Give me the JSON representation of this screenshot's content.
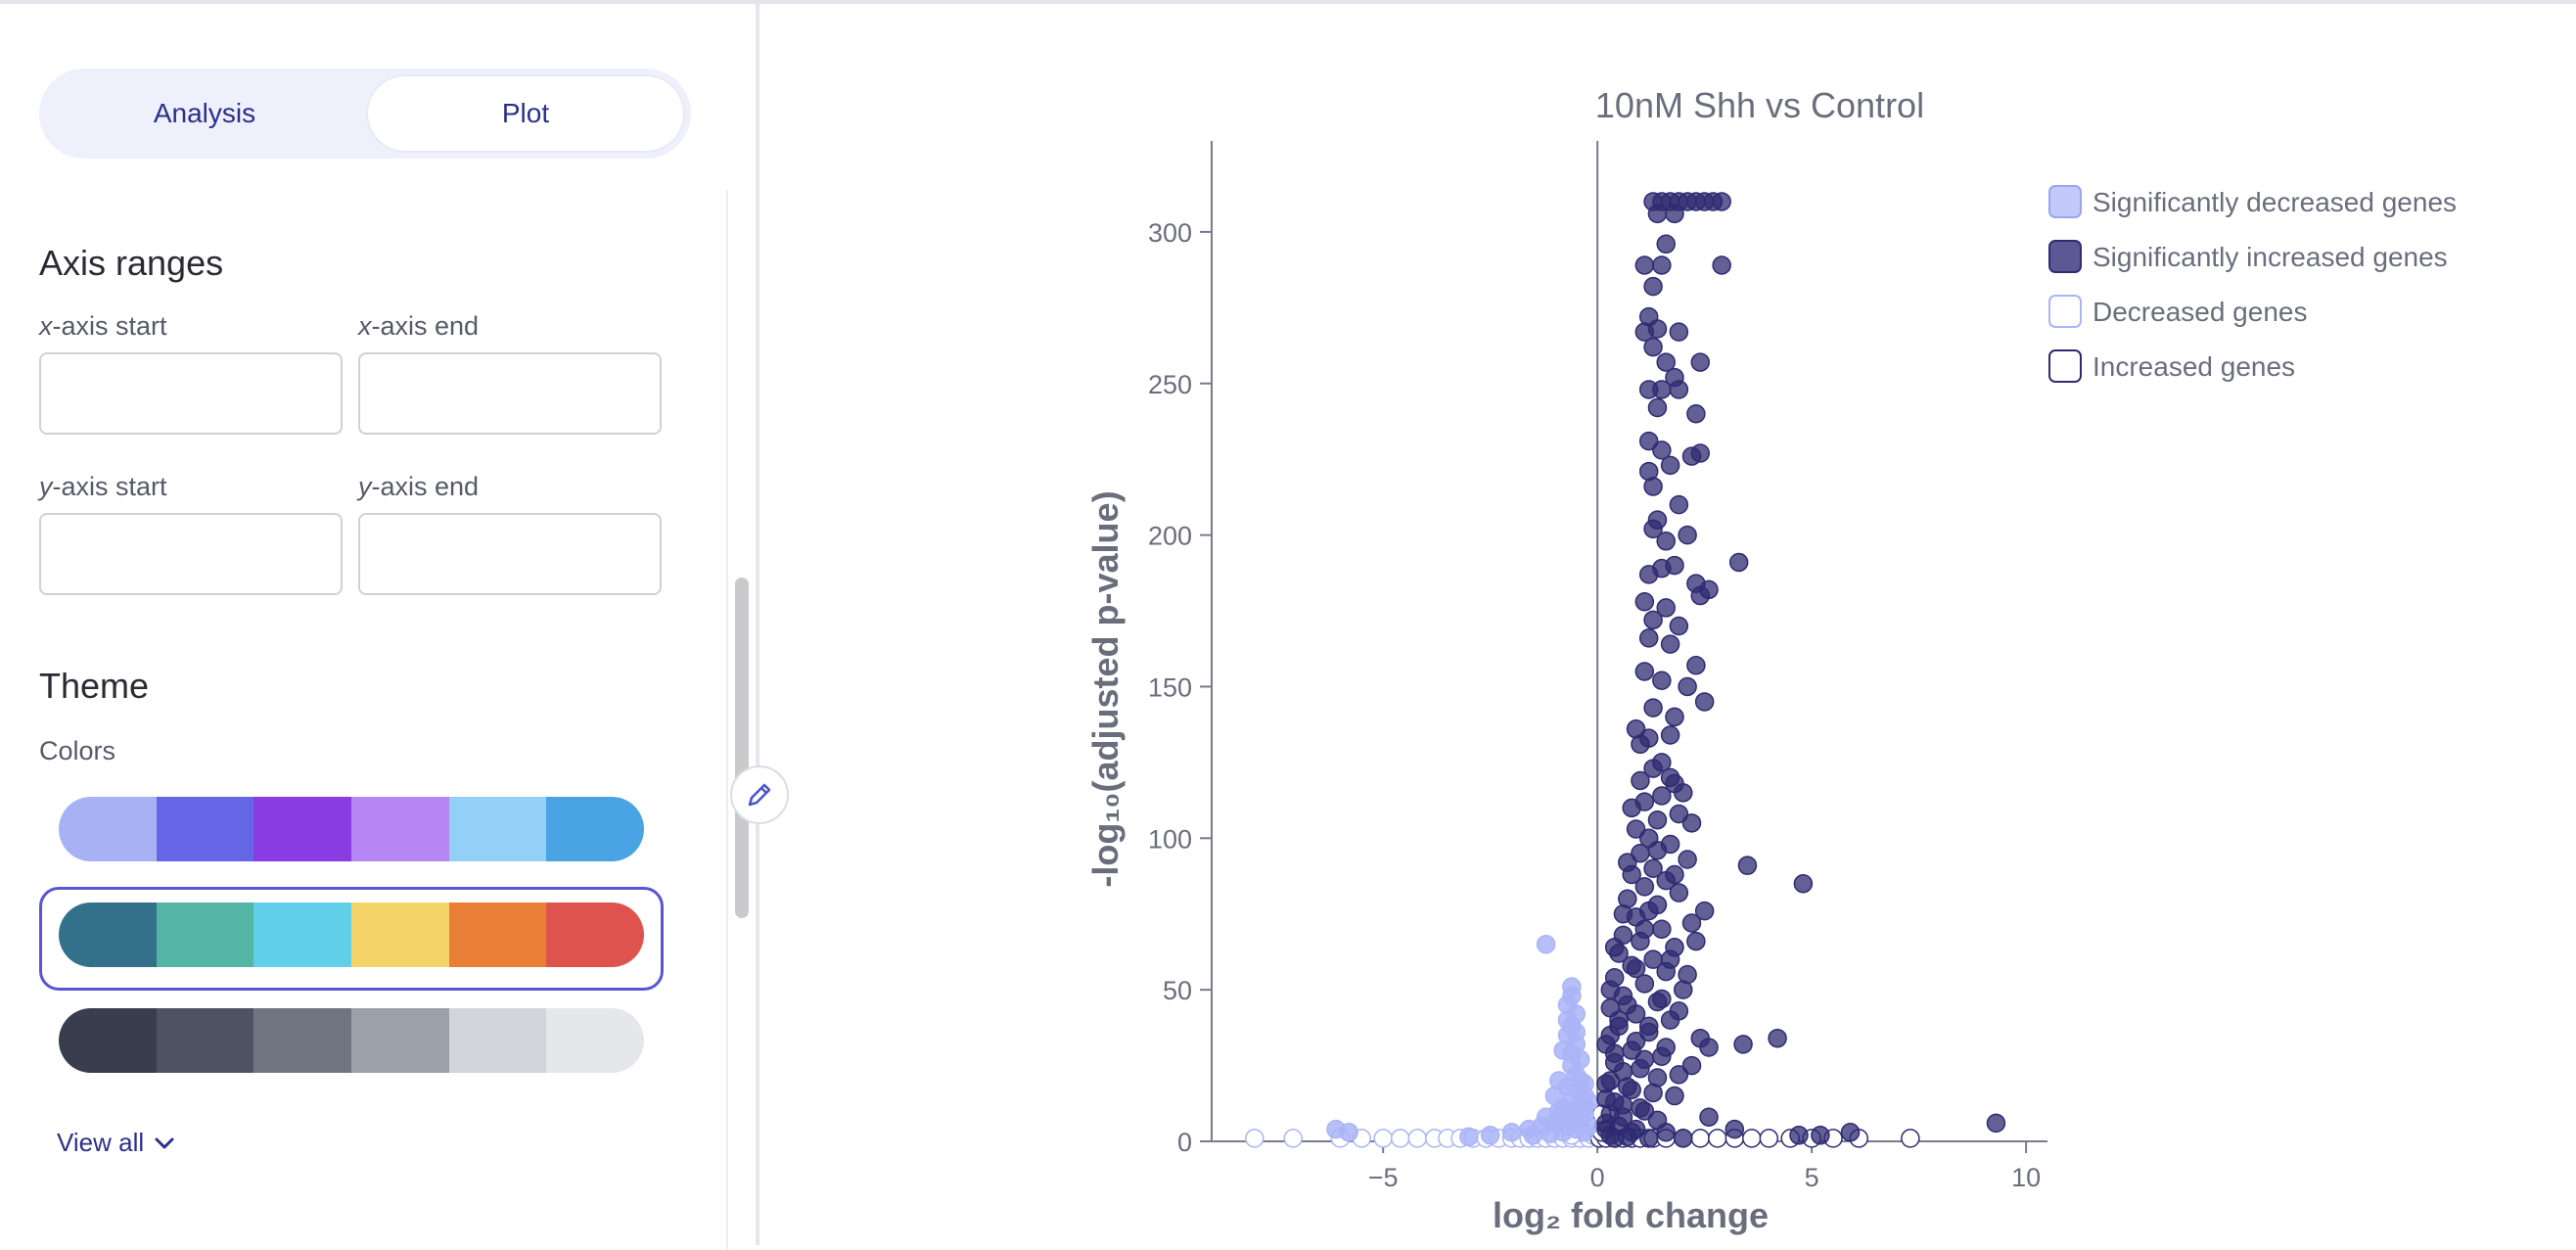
{
  "tabs": [
    {
      "label": "Analysis",
      "active": false
    },
    {
      "label": "Plot",
      "active": true
    }
  ],
  "axis_ranges": {
    "title": "Axis ranges",
    "x_start_label": "axis start",
    "x_end_label": "axis end",
    "y_start_label": "axis start",
    "y_end_label": "axis end",
    "x_prefix": "x",
    "y_prefix": "y",
    "x_start_value": "",
    "x_end_value": "",
    "y_start_value": "",
    "y_end_value": ""
  },
  "theme": {
    "title": "Theme",
    "colors_label": "Colors",
    "palettes": [
      [
        "#a7b2f5",
        "#6566e6",
        "#8a3ce3",
        "#b686f5",
        "#93d0f7",
        "#4aa3e2"
      ],
      [
        "#33718b",
        "#54b5a5",
        "#60cfe7",
        "#f4d466",
        "#e97f36",
        "#df534e"
      ],
      [
        "#383e4d",
        "#4d5362",
        "#6f7480",
        "#9ba0ab",
        "#d2d4d9",
        "#e6e7ea"
      ]
    ],
    "selected_palette": 1,
    "view_all_label": "View all"
  },
  "colors": {
    "sig_increased": "#2f2b72",
    "sig_decreased": "#aab4f7",
    "nonsig_increased_stroke": "#2f2b72",
    "nonsig_decreased_stroke": "#aab4f7",
    "axis": "#777b8a",
    "text": "#6a6e7c"
  },
  "chart_data": {
    "type": "scatter",
    "title": "10nM Shh vs Control",
    "xlabel": "log₂ fold change",
    "ylabel": "-log₁₀(adjusted p-value)",
    "xlim": [
      -9,
      10.5
    ],
    "ylim": [
      0,
      330
    ],
    "xticks": [
      -5,
      0,
      5,
      10
    ],
    "yticks": [
      0,
      50,
      100,
      150,
      200,
      250,
      300
    ],
    "xtick_labels": [
      "−5",
      "0",
      "5",
      "10"
    ],
    "ytick_labels": [
      "0",
      "50",
      "100",
      "150",
      "200",
      "250",
      "300"
    ],
    "legend_position": "top-right",
    "series": [
      {
        "name": "Significantly decreased genes",
        "points": [
          [
            -1.2,
            65
          ],
          [
            -0.6,
            51
          ],
          [
            -0.6,
            48
          ],
          [
            -0.7,
            45
          ],
          [
            -0.5,
            42
          ],
          [
            -0.6,
            38
          ],
          [
            -0.7,
            35
          ],
          [
            -0.5,
            32
          ],
          [
            -0.6,
            29
          ],
          [
            -0.4,
            27
          ],
          [
            -0.6,
            25
          ],
          [
            -0.5,
            22
          ],
          [
            -0.4,
            20
          ],
          [
            -0.7,
            18
          ],
          [
            -0.5,
            17
          ],
          [
            -0.3,
            15
          ],
          [
            -0.6,
            14
          ],
          [
            -0.4,
            12
          ],
          [
            -0.8,
            11
          ],
          [
            -0.5,
            10
          ],
          [
            -0.3,
            9
          ],
          [
            -0.9,
            8
          ],
          [
            -0.6,
            7
          ],
          [
            -0.4,
            6
          ],
          [
            -1.0,
            6
          ],
          [
            -0.7,
            5
          ],
          [
            -1.3,
            5
          ],
          [
            -0.5,
            4
          ],
          [
            -1.6,
            4
          ],
          [
            -0.8,
            3
          ],
          [
            -2.0,
            3
          ],
          [
            -1.1,
            2.5
          ],
          [
            -2.5,
            2
          ],
          [
            -1.5,
            2
          ],
          [
            -3.0,
            1.5
          ],
          [
            -0.3,
            3
          ],
          [
            -0.2,
            5
          ],
          [
            -0.4,
            8
          ],
          [
            -0.3,
            11
          ],
          [
            -0.2,
            13
          ],
          [
            -6.1,
            4
          ],
          [
            -5.8,
            3
          ],
          [
            -0.9,
            20
          ],
          [
            -0.8,
            30
          ],
          [
            -0.7,
            40
          ],
          [
            -1.0,
            15
          ],
          [
            -0.9,
            10
          ],
          [
            -1.2,
            8
          ],
          [
            -0.3,
            19
          ],
          [
            -0.5,
            36
          ]
        ]
      },
      {
        "name": "Significantly increased genes",
        "points": [
          [
            1.3,
            310
          ],
          [
            1.5,
            310
          ],
          [
            1.7,
            310
          ],
          [
            1.9,
            310
          ],
          [
            2.1,
            310
          ],
          [
            2.3,
            310
          ],
          [
            2.5,
            310
          ],
          [
            2.7,
            310
          ],
          [
            2.9,
            310
          ],
          [
            1.4,
            306
          ],
          [
            1.8,
            306
          ],
          [
            1.6,
            296
          ],
          [
            1.1,
            289
          ],
          [
            1.5,
            289
          ],
          [
            2.9,
            289
          ],
          [
            1.3,
            282
          ],
          [
            1.2,
            272
          ],
          [
            1.4,
            268
          ],
          [
            1.1,
            267
          ],
          [
            1.9,
            267
          ],
          [
            1.3,
            262
          ],
          [
            1.6,
            257
          ],
          [
            2.4,
            257
          ],
          [
            1.8,
            252
          ],
          [
            1.2,
            248
          ],
          [
            1.5,
            248
          ],
          [
            1.9,
            248
          ],
          [
            1.4,
            242
          ],
          [
            2.3,
            240
          ],
          [
            1.2,
            231
          ],
          [
            1.5,
            228
          ],
          [
            2.2,
            226
          ],
          [
            2.4,
            227
          ],
          [
            1.7,
            223
          ],
          [
            1.2,
            221
          ],
          [
            1.3,
            216
          ],
          [
            1.9,
            210
          ],
          [
            1.4,
            205
          ],
          [
            1.6,
            198
          ],
          [
            1.3,
            202
          ],
          [
            2.1,
            200
          ],
          [
            3.3,
            191
          ],
          [
            1.8,
            190
          ],
          [
            1.5,
            189
          ],
          [
            1.2,
            187
          ],
          [
            2.3,
            184
          ],
          [
            2.6,
            182
          ],
          [
            2.4,
            180
          ],
          [
            1.1,
            178
          ],
          [
            1.6,
            176
          ],
          [
            1.3,
            172
          ],
          [
            1.9,
            170
          ],
          [
            1.2,
            166
          ],
          [
            1.7,
            164
          ],
          [
            2.3,
            157
          ],
          [
            1.1,
            155
          ],
          [
            1.5,
            152
          ],
          [
            2.1,
            150
          ],
          [
            2.5,
            145
          ],
          [
            1.3,
            143
          ],
          [
            1.8,
            140
          ],
          [
            0.9,
            136
          ],
          [
            1.2,
            133
          ],
          [
            1.7,
            134
          ],
          [
            1.0,
            131
          ],
          [
            3.5,
            91
          ],
          [
            4.8,
            85
          ],
          [
            4.2,
            34
          ],
          [
            3.4,
            32
          ],
          [
            2.6,
            31
          ],
          [
            9.3,
            6
          ],
          [
            5.9,
            3
          ],
          [
            5.2,
            2
          ],
          [
            4.7,
            2
          ],
          [
            3.2,
            4
          ],
          [
            1.8,
            118
          ],
          [
            1.5,
            114
          ],
          [
            1.1,
            112
          ],
          [
            1.9,
            108
          ],
          [
            1.4,
            106
          ],
          [
            0.9,
            103
          ],
          [
            1.2,
            100
          ],
          [
            1.7,
            98
          ],
          [
            1.0,
            95
          ],
          [
            2.1,
            93
          ],
          [
            1.3,
            90
          ],
          [
            0.8,
            88
          ],
          [
            1.6,
            86
          ],
          [
            1.1,
            84
          ],
          [
            1.9,
            82
          ],
          [
            0.7,
            80
          ],
          [
            1.4,
            78
          ],
          [
            1.2,
            76
          ],
          [
            0.9,
            74
          ],
          [
            2.2,
            72
          ],
          [
            1.5,
            70
          ],
          [
            0.6,
            68
          ],
          [
            1.0,
            66
          ],
          [
            1.8,
            64
          ],
          [
            0.5,
            62
          ],
          [
            1.3,
            60
          ],
          [
            0.8,
            58
          ],
          [
            1.6,
            56
          ],
          [
            0.4,
            54
          ],
          [
            1.1,
            52
          ],
          [
            2.0,
            50
          ],
          [
            0.6,
            48
          ],
          [
            1.4,
            46
          ],
          [
            0.3,
            44
          ],
          [
            0.9,
            42
          ],
          [
            1.7,
            40
          ],
          [
            0.5,
            38
          ],
          [
            1.2,
            36
          ],
          [
            2.4,
            34
          ],
          [
            0.2,
            32
          ],
          [
            0.8,
            30
          ],
          [
            1.5,
            28
          ],
          [
            0.4,
            26
          ],
          [
            1.0,
            24
          ],
          [
            1.9,
            22
          ],
          [
            0.3,
            20
          ],
          [
            0.7,
            18
          ],
          [
            1.3,
            16
          ],
          [
            0.2,
            14
          ],
          [
            0.6,
            12
          ],
          [
            1.1,
            10
          ],
          [
            2.6,
            8
          ],
          [
            0.2,
            6
          ],
          [
            0.5,
            5
          ],
          [
            0.9,
            4
          ],
          [
            1.6,
            3
          ],
          [
            0.3,
            2
          ],
          [
            0.7,
            1.5
          ],
          [
            1.2,
            1
          ],
          [
            2.0,
            1
          ],
          [
            0.4,
            1
          ],
          [
            1.3,
            123
          ],
          [
            1.7,
            120
          ],
          [
            1.5,
            125
          ],
          [
            2.0,
            115
          ],
          [
            1.0,
            119
          ],
          [
            0.8,
            110
          ],
          [
            2.2,
            105
          ],
          [
            1.4,
            96
          ],
          [
            0.7,
            92
          ],
          [
            1.8,
            88
          ],
          [
            2.5,
            76
          ],
          [
            0.6,
            75
          ],
          [
            1.1,
            70
          ],
          [
            2.3,
            66
          ],
          [
            0.4,
            64
          ],
          [
            1.7,
            60
          ],
          [
            0.9,
            57
          ],
          [
            2.1,
            55
          ],
          [
            0.3,
            50
          ],
          [
            1.5,
            47
          ],
          [
            0.7,
            45
          ],
          [
            1.9,
            43
          ],
          [
            0.5,
            40
          ],
          [
            1.2,
            38
          ],
          [
            0.3,
            35
          ],
          [
            0.9,
            33
          ],
          [
            1.6,
            31
          ],
          [
            0.4,
            29
          ],
          [
            1.1,
            27
          ],
          [
            2.2,
            25
          ],
          [
            0.6,
            23
          ],
          [
            1.4,
            21
          ],
          [
            0.2,
            19
          ],
          [
            0.8,
            17
          ],
          [
            1.8,
            15
          ],
          [
            0.4,
            13
          ],
          [
            1.0,
            11
          ],
          [
            0.3,
            9
          ],
          [
            0.6,
            8
          ],
          [
            1.4,
            7
          ],
          [
            0.2,
            4
          ],
          [
            0.8,
            3
          ]
        ]
      },
      {
        "name": "Decreased genes",
        "points": [
          [
            -8.0,
            1
          ],
          [
            -7.1,
            1
          ],
          [
            -6.0,
            1
          ],
          [
            -5.5,
            1
          ],
          [
            -5.0,
            1
          ],
          [
            -4.6,
            1
          ],
          [
            -4.2,
            1
          ],
          [
            -3.8,
            1
          ],
          [
            -3.5,
            1
          ],
          [
            -3.2,
            1
          ],
          [
            -2.9,
            1
          ],
          [
            -2.6,
            1
          ],
          [
            -2.3,
            1
          ],
          [
            -2.0,
            1
          ],
          [
            -1.8,
            1
          ],
          [
            -1.6,
            1
          ],
          [
            -1.4,
            1
          ],
          [
            -1.2,
            1
          ],
          [
            -1.0,
            1
          ],
          [
            -0.8,
            1
          ],
          [
            -0.6,
            1
          ],
          [
            -0.4,
            1
          ],
          [
            -0.2,
            1
          ],
          [
            -0.3,
            6
          ],
          [
            -0.2,
            10
          ],
          [
            -0.1,
            2
          ],
          [
            -0.4,
            3
          ],
          [
            -0.6,
            2
          ],
          [
            -0.3,
            4
          ],
          [
            -0.15,
            8
          ]
        ]
      },
      {
        "name": "Increased genes",
        "points": [
          [
            0.05,
            1
          ],
          [
            0.2,
            1
          ],
          [
            0.4,
            1
          ],
          [
            0.6,
            1
          ],
          [
            0.8,
            1
          ],
          [
            1.0,
            1
          ],
          [
            1.3,
            1
          ],
          [
            1.6,
            1
          ],
          [
            2.0,
            1
          ],
          [
            2.4,
            1
          ],
          [
            2.8,
            1
          ],
          [
            3.2,
            1
          ],
          [
            3.6,
            1
          ],
          [
            4.0,
            1
          ],
          [
            4.5,
            1
          ],
          [
            5.0,
            1
          ],
          [
            5.5,
            1
          ],
          [
            6.1,
            1
          ],
          [
            7.3,
            1
          ],
          [
            0.1,
            3
          ],
          [
            0.15,
            6
          ],
          [
            0.1,
            9
          ]
        ]
      }
    ]
  }
}
